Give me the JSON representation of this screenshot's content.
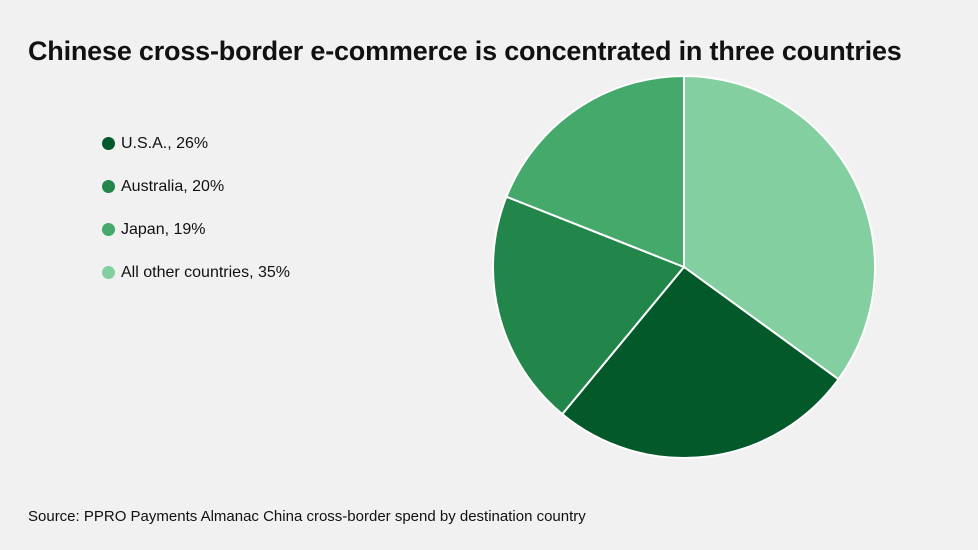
{
  "chart_data": {
    "type": "pie",
    "title": "Chinese cross-border e-commerce is concentrated in three countries",
    "source": "Source: PPRO Payments Almanac China cross-border spend by destination country",
    "legend_position": "left",
    "slices": [
      {
        "label": "U.S.A., 26%",
        "value": 26,
        "color": "#03592a"
      },
      {
        "label": "Australia, 20%",
        "value": 20,
        "color": "#22864a"
      },
      {
        "label": "Japan, 19%",
        "value": 19,
        "color": "#44a96b"
      },
      {
        "label": "All other countries, 35%",
        "value": 35,
        "color": "#84cf9f"
      }
    ],
    "slice_order_clockwise_from_top": [
      "All other countries, 35%",
      "U.S.A., 26%",
      "Australia, 20%",
      "Japan, 19%"
    ]
  }
}
